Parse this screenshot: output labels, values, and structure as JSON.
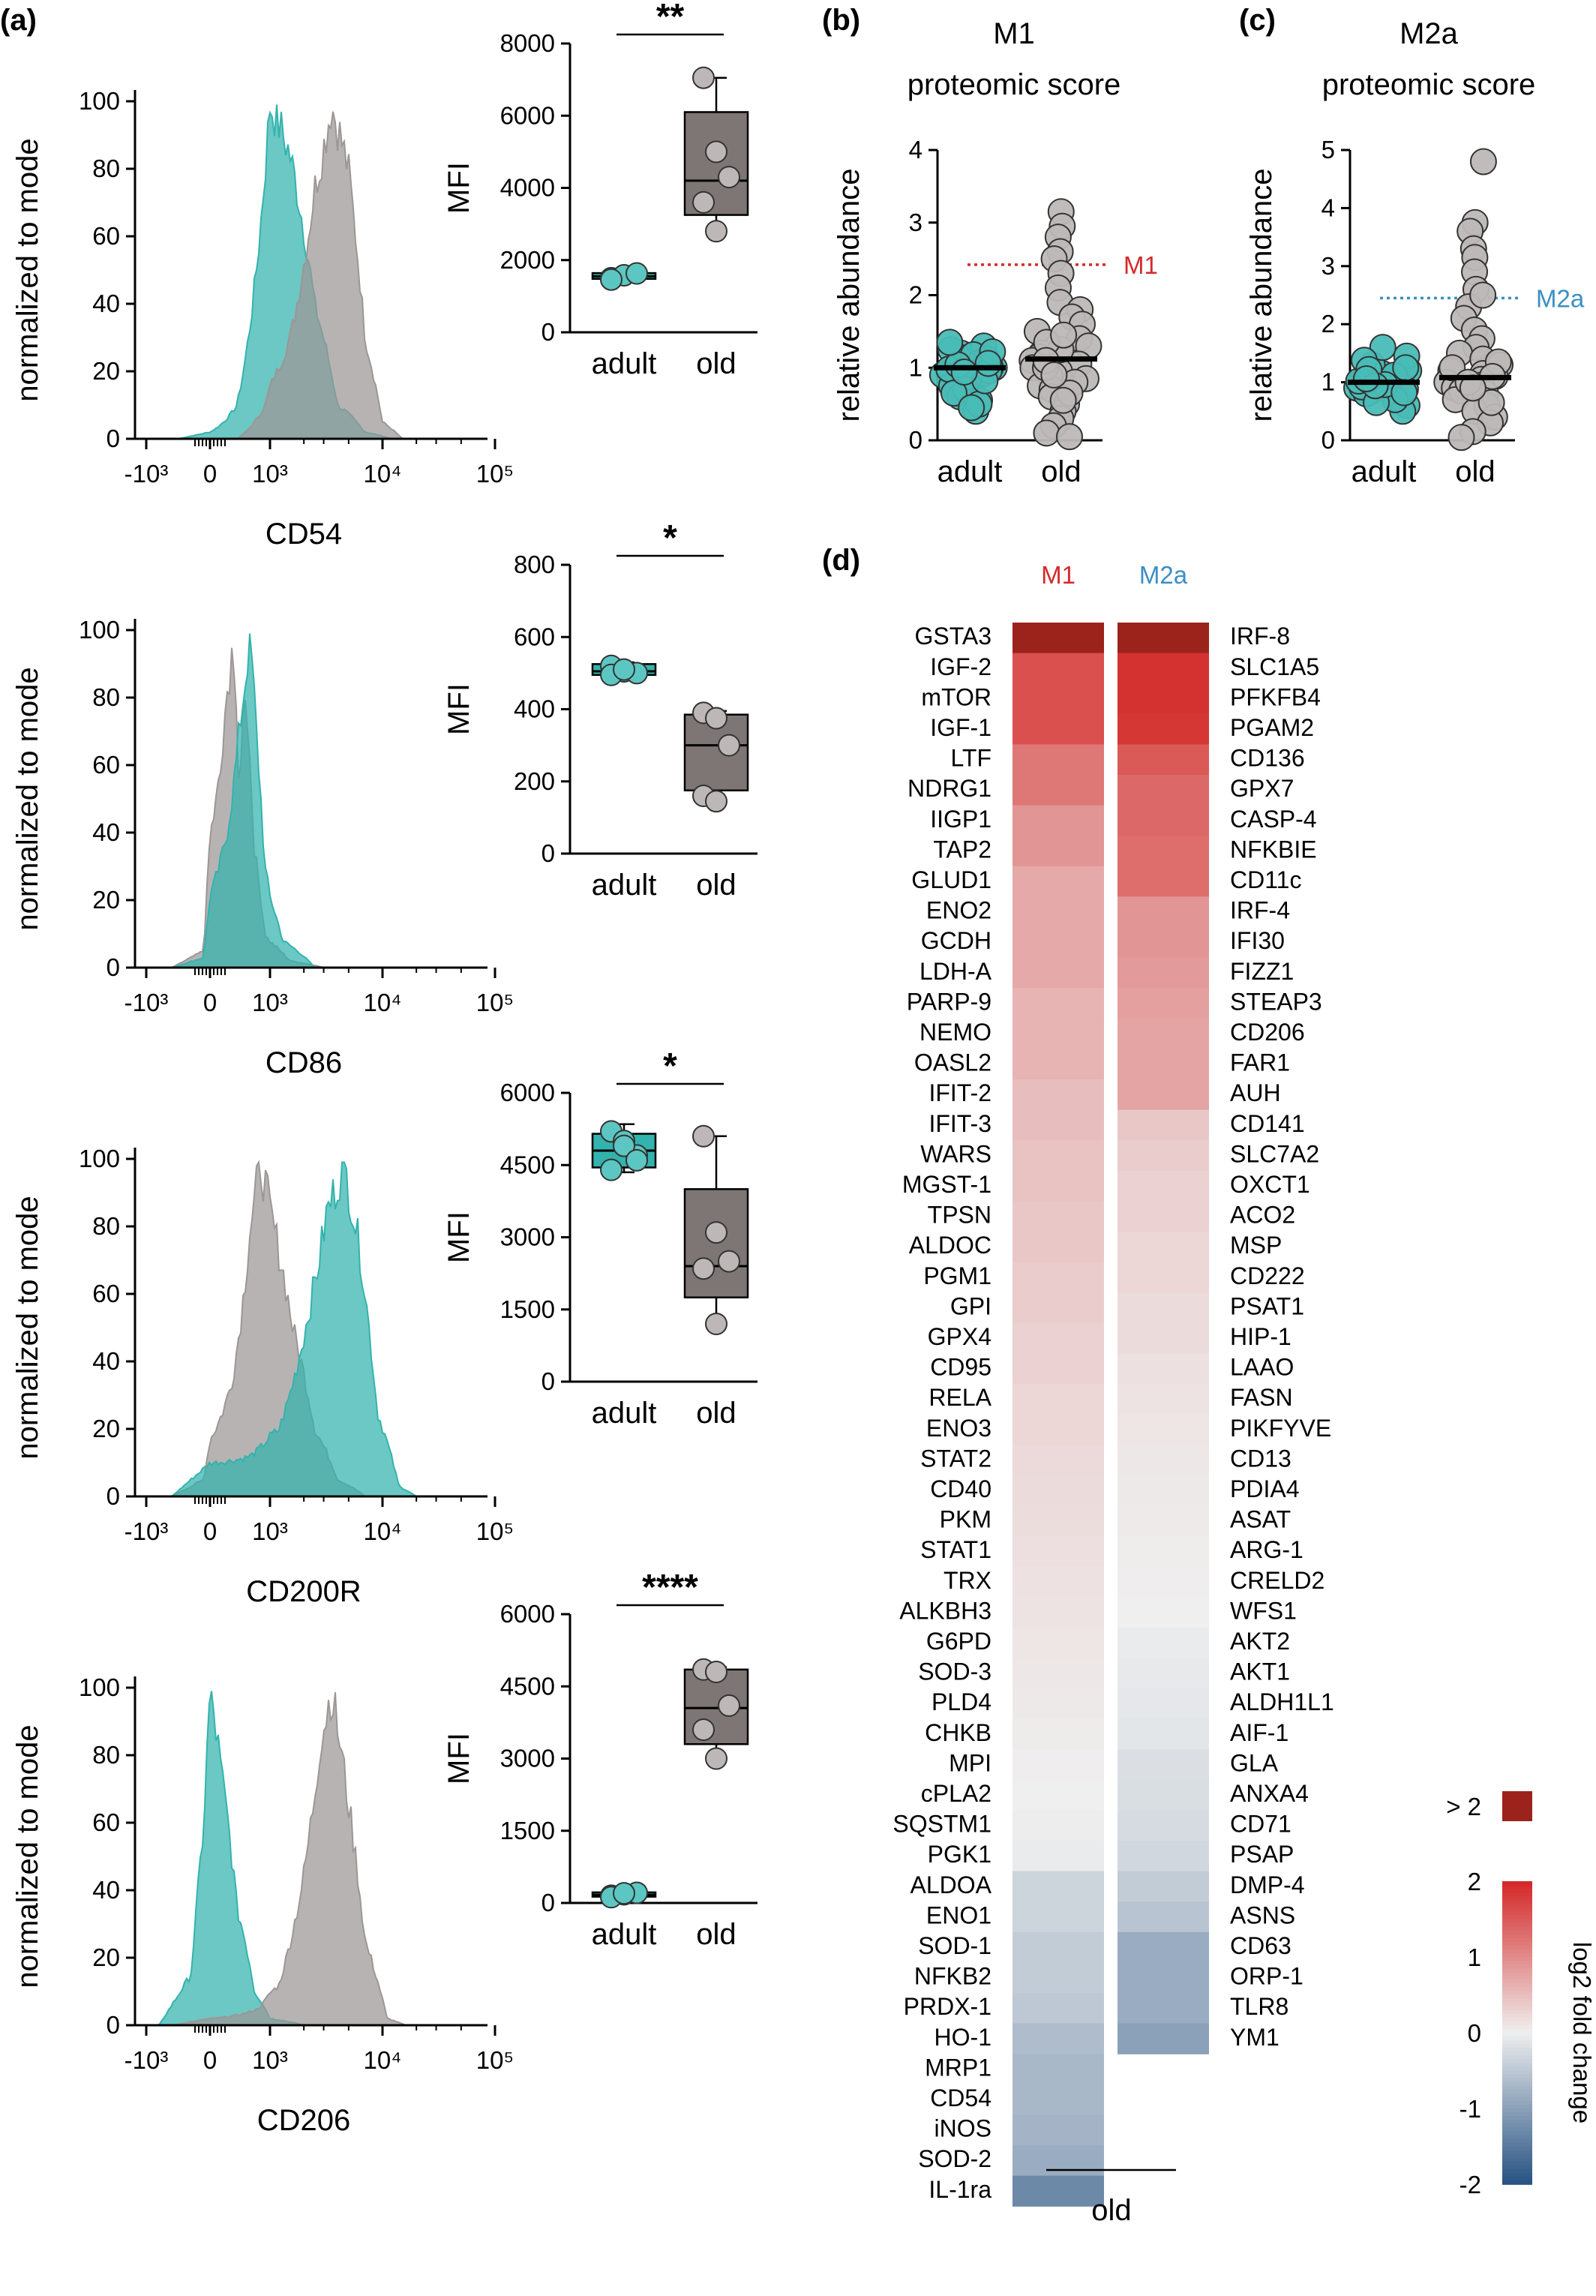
{
  "panel_labels": {
    "a": "(a)",
    "b": "(b)",
    "c": "(c)",
    "d": "(d)"
  },
  "colors": {
    "teal": "#33b3ad",
    "grey": "#9c9696",
    "box_grey": "#7d7675",
    "red": "#d42a2a",
    "blue": "#3a8fc4"
  },
  "chart_data": [
    {
      "id": "a-hist-cd54",
      "type": "area",
      "ylabel": "normalized to mode",
      "xlabel": "CD54",
      "yticks": [
        "0",
        "20",
        "40",
        "60",
        "80",
        "100"
      ],
      "xticks": [
        "-10³",
        "0",
        "10³",
        "10⁴",
        "10⁵"
      ],
      "series": [
        {
          "color": "teal",
          "peak": 1000
        },
        {
          "color": "grey",
          "peak": 3500
        }
      ]
    },
    {
      "id": "a-box-cd54",
      "type": "box",
      "ylabel": "MFI",
      "categories": [
        "adult",
        "old"
      ],
      "yticks": [
        "0",
        "2000",
        "4000",
        "6000",
        "8000"
      ],
      "ylim": [
        0,
        8000
      ],
      "significance": "**",
      "boxes": [
        {
          "name": "adult",
          "min": 1450,
          "q1": 1480,
          "median": 1550,
          "q3": 1640,
          "max": 1650,
          "points": [
            1500,
            1580,
            1630,
            1460
          ]
        },
        {
          "name": "old",
          "min": 2800,
          "q1": 3250,
          "median": 4200,
          "q3": 6100,
          "max": 7050,
          "points": [
            7050,
            5000,
            4300,
            3600,
            2800
          ]
        }
      ]
    },
    {
      "id": "a-hist-cd86",
      "type": "area",
      "ylabel": "normalized to mode",
      "xlabel": "CD86",
      "yticks": [
        "0",
        "20",
        "40",
        "60",
        "80",
        "100"
      ],
      "xticks": [
        "-10³",
        "0",
        "10³",
        "10⁴",
        "10⁵"
      ],
      "series": [
        {
          "color": "grey",
          "peak": 150
        },
        {
          "color": "teal",
          "peak": 400
        }
      ]
    },
    {
      "id": "a-box-cd86",
      "type": "box",
      "ylabel": "MFI",
      "categories": [
        "adult",
        "old"
      ],
      "yticks": [
        "0",
        "200",
        "400",
        "600",
        "800"
      ],
      "ylim": [
        0,
        800
      ],
      "significance": "*",
      "boxes": [
        {
          "name": "adult",
          "min": 490,
          "q1": 495,
          "median": 505,
          "q3": 525,
          "max": 530,
          "points": [
            520,
            505,
            500,
            495,
            510
          ]
        },
        {
          "name": "old",
          "min": 150,
          "q1": 175,
          "median": 300,
          "q3": 385,
          "max": 395,
          "points": [
            390,
            375,
            300,
            160,
            145
          ]
        }
      ]
    },
    {
      "id": "a-hist-cd200r",
      "type": "area",
      "ylabel": "normalized to mode",
      "xlabel": "CD200R",
      "yticks": [
        "0",
        "20",
        "40",
        "60",
        "80",
        "100"
      ],
      "xticks": [
        "-10³",
        "0",
        "10³",
        "10⁴",
        "10⁵"
      ],
      "series": [
        {
          "color": "grey",
          "peak": 600
        },
        {
          "color": "teal",
          "peak": 4500
        }
      ]
    },
    {
      "id": "a-box-cd200r",
      "type": "box",
      "ylabel": "MFI",
      "categories": [
        "adult",
        "old"
      ],
      "yticks": [
        "0",
        "1500",
        "3000",
        "4500",
        "6000"
      ],
      "ylim": [
        0,
        6000
      ],
      "significance": "*",
      "boxes": [
        {
          "name": "adult",
          "min": 4350,
          "q1": 4450,
          "median": 4800,
          "q3": 5150,
          "max": 5350,
          "points": [
            5200,
            5000,
            4700,
            4400,
            4900,
            4600
          ]
        },
        {
          "name": "old",
          "min": 1200,
          "q1": 1750,
          "median": 2400,
          "q3": 4000,
          "max": 5100,
          "points": [
            5100,
            3100,
            2500,
            2350,
            1200
          ]
        }
      ]
    },
    {
      "id": "a-hist-cd206",
      "type": "area",
      "ylabel": "normalized to mode",
      "xlabel": "CD206",
      "yticks": [
        "0",
        "20",
        "40",
        "60",
        "80",
        "100"
      ],
      "xticks": [
        "-10³",
        "0",
        "10³",
        "10⁴",
        "10⁵"
      ],
      "series": [
        {
          "color": "teal",
          "peak": 0
        },
        {
          "color": "grey",
          "peak": 3500
        }
      ]
    },
    {
      "id": "a-box-cd206",
      "type": "box",
      "ylabel": "MFI",
      "categories": [
        "adult",
        "old"
      ],
      "yticks": [
        "0",
        "1500",
        "3000",
        "4500",
        "6000"
      ],
      "ylim": [
        0,
        6000
      ],
      "significance": "****",
      "boxes": [
        {
          "name": "adult",
          "min": 100,
          "q1": 130,
          "median": 170,
          "q3": 220,
          "max": 240,
          "points": [
            150,
            180,
            210,
            120,
            200
          ]
        },
        {
          "name": "old",
          "min": 3000,
          "q1": 3300,
          "median": 4050,
          "q3": 4850,
          "max": 4900,
          "points": [
            4850,
            4800,
            4100,
            3600,
            3000
          ]
        }
      ]
    },
    {
      "id": "b-scatter",
      "type": "scatter",
      "title": "M1",
      "subtitle": "proteomic score",
      "ylabel": "relative abundance",
      "categories": [
        "adult",
        "old"
      ],
      "yticks": [
        "0",
        "1",
        "2",
        "3",
        "4"
      ],
      "ylim": [
        0,
        4
      ],
      "threshold": {
        "value": 2.42,
        "label": "M1",
        "color": "red"
      },
      "medians": [
        1.0,
        1.12
      ],
      "points": {
        "adult": [
          1.0,
          0.95,
          1.05,
          0.9,
          1.1,
          0.85,
          1.2,
          1.0,
          0.8,
          1.15,
          0.75,
          1.25,
          0.6,
          0.4,
          0.55,
          1.3,
          0.92,
          1.08,
          0.98,
          1.02,
          0.88,
          1.12,
          0.7,
          1.18,
          0.65,
          0.96,
          1.04,
          0.5,
          0.45,
          1.35,
          0.82,
          1.22,
          0.94,
          1.06
        ],
        "old": [
          3.15,
          2.95,
          2.8,
          2.6,
          2.5,
          2.3,
          2.1,
          1.9,
          1.8,
          1.7,
          1.6,
          1.5,
          1.4,
          1.3,
          1.2,
          1.15,
          1.1,
          1.05,
          1.0,
          0.95,
          0.9,
          0.85,
          0.8,
          0.75,
          0.7,
          0.6,
          0.5,
          0.4,
          0.3,
          0.2,
          0.1,
          0.05,
          1.25,
          1.35,
          1.45,
          0.65,
          0.55,
          1.0,
          1.1,
          0.9
        ]
      }
    },
    {
      "id": "c-scatter",
      "type": "scatter",
      "title": "M2a",
      "subtitle": "proteomic score",
      "ylabel": "relative abundance",
      "categories": [
        "adult",
        "old"
      ],
      "yticks": [
        "0",
        "1",
        "2",
        "3",
        "4",
        "5"
      ],
      "ylim": [
        0,
        5
      ],
      "threshold": {
        "value": 2.45,
        "label": "M2a",
        "color": "blue"
      },
      "medians": [
        1.0,
        1.08
      ],
      "points": {
        "adult": [
          1.0,
          0.95,
          1.05,
          0.9,
          1.1,
          0.85,
          1.2,
          1.0,
          0.8,
          1.15,
          0.75,
          1.3,
          1.45,
          1.6,
          0.6,
          0.5,
          0.92,
          1.08,
          0.98,
          1.02,
          0.88,
          1.12,
          0.7,
          1.25,
          0.65,
          0.96,
          1.04,
          1.38,
          0.82,
          1.22,
          0.94,
          1.06
        ],
        "old": [
          4.8,
          3.75,
          3.6,
          3.3,
          3.15,
          2.9,
          2.6,
          2.3,
          2.1,
          1.9,
          1.75,
          1.6,
          1.5,
          1.4,
          1.3,
          1.2,
          1.15,
          1.1,
          1.05,
          1.0,
          0.95,
          0.9,
          0.85,
          0.8,
          0.7,
          0.6,
          0.5,
          0.4,
          0.3,
          0.15,
          0.05,
          1.25,
          1.35,
          2.5,
          0.65,
          1.0,
          1.1,
          0.9
        ]
      }
    },
    {
      "id": "d-heatmap",
      "type": "heatmap",
      "columns": [
        "M1",
        "M2a"
      ],
      "xlabel": "old",
      "colorbar": {
        "label": "log2 fold change",
        "ticks": [
          "2",
          "1",
          "0",
          "-1",
          "-2"
        ],
        "over_label": "> 2",
        "range": [
          -2,
          2
        ]
      },
      "M1": [
        {
          "gene": "GSTA3",
          "value": 2.6
        },
        {
          "gene": "IGF-2",
          "value": 1.6
        },
        {
          "gene": "mTOR",
          "value": 1.6
        },
        {
          "gene": "IGF-1",
          "value": 1.6
        },
        {
          "gene": "LTF",
          "value": 1.2
        },
        {
          "gene": "NDRG1",
          "value": 1.2
        },
        {
          "gene": "IIGP1",
          "value": 0.9
        },
        {
          "gene": "TAP2",
          "value": 0.9
        },
        {
          "gene": "GLUD1",
          "value": 0.7
        },
        {
          "gene": "ENO2",
          "value": 0.7
        },
        {
          "gene": "GCDH",
          "value": 0.7
        },
        {
          "gene": "LDH-A",
          "value": 0.7
        },
        {
          "gene": "PARP-9",
          "value": 0.6
        },
        {
          "gene": "NEMO",
          "value": 0.6
        },
        {
          "gene": "OASL2",
          "value": 0.6
        },
        {
          "gene": "IFIT-2",
          "value": 0.5
        },
        {
          "gene": "IFIT-3",
          "value": 0.5
        },
        {
          "gene": "WARS",
          "value": 0.45
        },
        {
          "gene": "MGST-1",
          "value": 0.45
        },
        {
          "gene": "TPSN",
          "value": 0.4
        },
        {
          "gene": "ALDOC",
          "value": 0.4
        },
        {
          "gene": "PGM1",
          "value": 0.35
        },
        {
          "gene": "GPI",
          "value": 0.35
        },
        {
          "gene": "GPX4",
          "value": 0.3
        },
        {
          "gene": "CD95",
          "value": 0.3
        },
        {
          "gene": "RELA",
          "value": 0.25
        },
        {
          "gene": "ENO3",
          "value": 0.25
        },
        {
          "gene": "STAT2",
          "value": 0.22
        },
        {
          "gene": "CD40",
          "value": 0.2
        },
        {
          "gene": "PKM",
          "value": 0.18
        },
        {
          "gene": "STAT1",
          "value": 0.16
        },
        {
          "gene": "TRX",
          "value": 0.14
        },
        {
          "gene": "ALKBH3",
          "value": 0.12
        },
        {
          "gene": "G6PD",
          "value": 0.1
        },
        {
          "gene": "SOD-3",
          "value": 0.08
        },
        {
          "gene": "PLD4",
          "value": 0.06
        },
        {
          "gene": "CHKB",
          "value": 0.04
        },
        {
          "gene": "MPI",
          "value": 0.02
        },
        {
          "gene": "cPLA2",
          "value": 0.0
        },
        {
          "gene": "SQSTM1",
          "value": -0.02
        },
        {
          "gene": "PGK1",
          "value": -0.05
        },
        {
          "gene": "ALDOA",
          "value": -0.35
        },
        {
          "gene": "ENO1",
          "value": -0.35
        },
        {
          "gene": "SOD-1",
          "value": -0.45
        },
        {
          "gene": "NFKB2",
          "value": -0.45
        },
        {
          "gene": "PRDX-1",
          "value": -0.5
        },
        {
          "gene": "HO-1",
          "value": -0.65
        },
        {
          "gene": "MRP1",
          "value": -0.7
        },
        {
          "gene": "CD54",
          "value": -0.7
        },
        {
          "gene": "iNOS",
          "value": -0.75
        },
        {
          "gene": "SOD-2",
          "value": -0.85
        },
        {
          "gene": "IL-1ra",
          "value": -1.3
        }
      ],
      "M2a": [
        {
          "gene": "IRF-8",
          "value": 2.6
        },
        {
          "gene": "SLC1A5",
          "value": 1.9
        },
        {
          "gene": "PFKFB4",
          "value": 1.9
        },
        {
          "gene": "PGAM2",
          "value": 1.85
        },
        {
          "gene": "CD136",
          "value": 1.5
        },
        {
          "gene": "GPX7",
          "value": 1.35
        },
        {
          "gene": "CASP-4",
          "value": 1.35
        },
        {
          "gene": "NFKBIE",
          "value": 1.3
        },
        {
          "gene": "CD11c",
          "value": 1.3
        },
        {
          "gene": "IRF-4",
          "value": 0.9
        },
        {
          "gene": "IFI30",
          "value": 0.9
        },
        {
          "gene": "FIZZ1",
          "value": 0.85
        },
        {
          "gene": "STEAP3",
          "value": 0.8
        },
        {
          "gene": "CD206",
          "value": 0.75
        },
        {
          "gene": "FAR1",
          "value": 0.75
        },
        {
          "gene": "AUH",
          "value": 0.75
        },
        {
          "gene": "CD141",
          "value": 0.4
        },
        {
          "gene": "SLC7A2",
          "value": 0.35
        },
        {
          "gene": "OXCT1",
          "value": 0.3
        },
        {
          "gene": "ACO2",
          "value": 0.3
        },
        {
          "gene": "MSP",
          "value": 0.25
        },
        {
          "gene": "CD222",
          "value": 0.25
        },
        {
          "gene": "PSAT1",
          "value": 0.2
        },
        {
          "gene": "HIP-1",
          "value": 0.2
        },
        {
          "gene": "LAAO",
          "value": 0.15
        },
        {
          "gene": "FASN",
          "value": 0.12
        },
        {
          "gene": "PIKFYVE",
          "value": 0.1
        },
        {
          "gene": "CD13",
          "value": 0.08
        },
        {
          "gene": "PDIA4",
          "value": 0.06
        },
        {
          "gene": "ASAT",
          "value": 0.05
        },
        {
          "gene": "ARG-1",
          "value": 0.03
        },
        {
          "gene": "CRELD2",
          "value": 0.02
        },
        {
          "gene": "WFS1",
          "value": 0.0
        },
        {
          "gene": "AKT2",
          "value": -0.05
        },
        {
          "gene": "AKT1",
          "value": -0.08
        },
        {
          "gene": "ALDH1L1",
          "value": -0.1
        },
        {
          "gene": "AIF-1",
          "value": -0.12
        },
        {
          "gene": "GLA",
          "value": -0.2
        },
        {
          "gene": "ANXA4",
          "value": -0.22
        },
        {
          "gene": "CD71",
          "value": -0.25
        },
        {
          "gene": "PSAP",
          "value": -0.3
        },
        {
          "gene": "DMP-4",
          "value": -0.45
        },
        {
          "gene": "ASNS",
          "value": -0.55
        },
        {
          "gene": "CD63",
          "value": -0.85
        },
        {
          "gene": "ORP-1",
          "value": -0.85
        },
        {
          "gene": "TLR8",
          "value": -0.85
        },
        {
          "gene": "YM1",
          "value": -1.0
        }
      ]
    }
  ]
}
